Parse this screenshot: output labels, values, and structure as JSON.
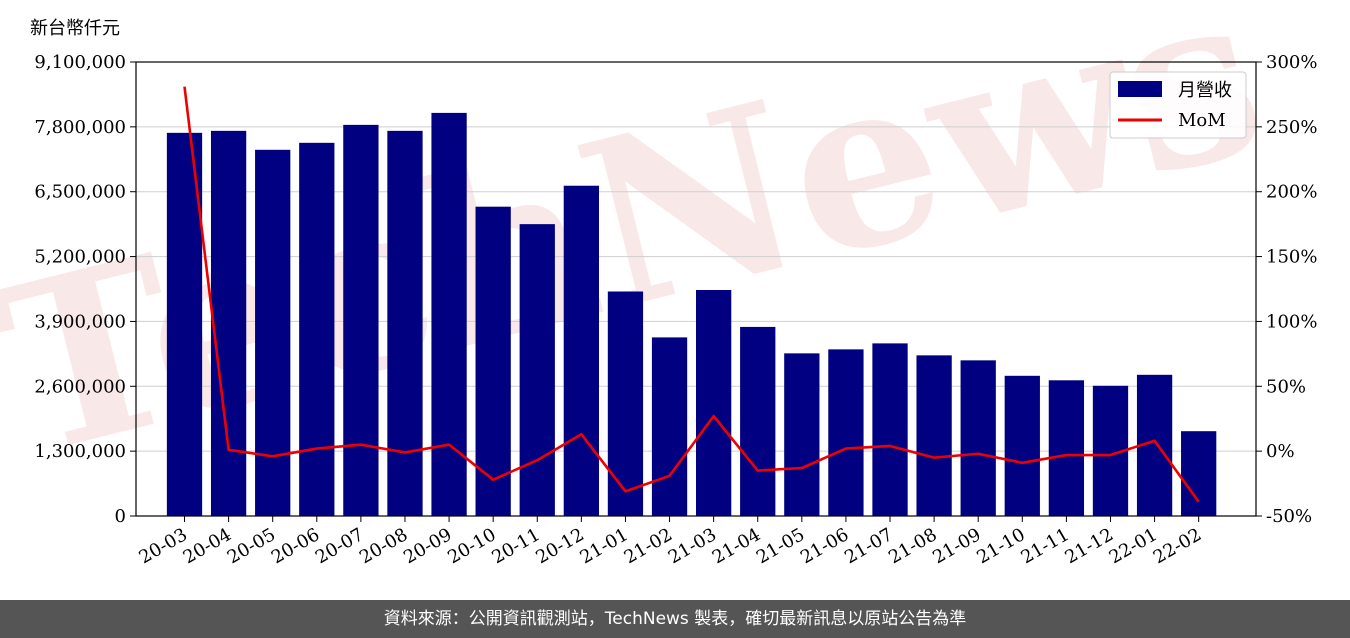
{
  "chart_data": {
    "type": "bar",
    "y_unit_label": "新台幣仟元",
    "categories": [
      "20-03",
      "20-04",
      "20-05",
      "20-06",
      "20-07",
      "20-08",
      "20-09",
      "20-10",
      "20-11",
      "20-12",
      "21-01",
      "21-02",
      "21-03",
      "21-04",
      "21-05",
      "21-06",
      "21-07",
      "21-08",
      "21-09",
      "21-10",
      "21-11",
      "21-12",
      "22-01",
      "22-02"
    ],
    "series": [
      {
        "name": "月營收",
        "axis": "left",
        "type": "bar",
        "color": "#000080",
        "values": [
          7680000,
          7720000,
          7340000,
          7480000,
          7840000,
          7720000,
          8080000,
          6200000,
          5850000,
          6620000,
          4500000,
          3580000,
          4530000,
          3790000,
          3260000,
          3340000,
          3460000,
          3220000,
          3120000,
          2810000,
          2720000,
          2610000,
          2830000,
          1700000
        ]
      },
      {
        "name": "MoM",
        "axis": "right",
        "type": "line",
        "color": "#ee0000",
        "values": [
          281,
          1,
          -4,
          2,
          5,
          -1,
          5,
          -22,
          -7,
          13,
          -31,
          -19,
          27,
          -15,
          -13,
          2,
          4,
          -5,
          -2,
          -9,
          -3,
          -3,
          8,
          -39
        ]
      }
    ],
    "y_left": {
      "min": 0,
      "max": 9100000,
      "ticks": [
        0,
        1300000,
        2600000,
        3900000,
        5200000,
        6500000,
        7800000,
        9100000
      ],
      "tick_labels": [
        "0",
        "1,300,000",
        "2,600,000",
        "3,900,000",
        "5,200,000",
        "6,500,000",
        "7,800,000",
        "9,100,000"
      ]
    },
    "y_right": {
      "min": -50,
      "max": 300,
      "ticks": [
        -50,
        0,
        50,
        100,
        150,
        200,
        250,
        300
      ],
      "tick_labels": [
        "-50%",
        "0%",
        "50%",
        "100%",
        "150%",
        "200%",
        "250%",
        "300%"
      ]
    },
    "grid": "horizontal",
    "legend": "top-right",
    "watermark": "TechNews"
  },
  "footer": {
    "text": "資料來源：公開資訊觀測站，TechNews 製表，確切最新訊息以原站公告為準"
  }
}
